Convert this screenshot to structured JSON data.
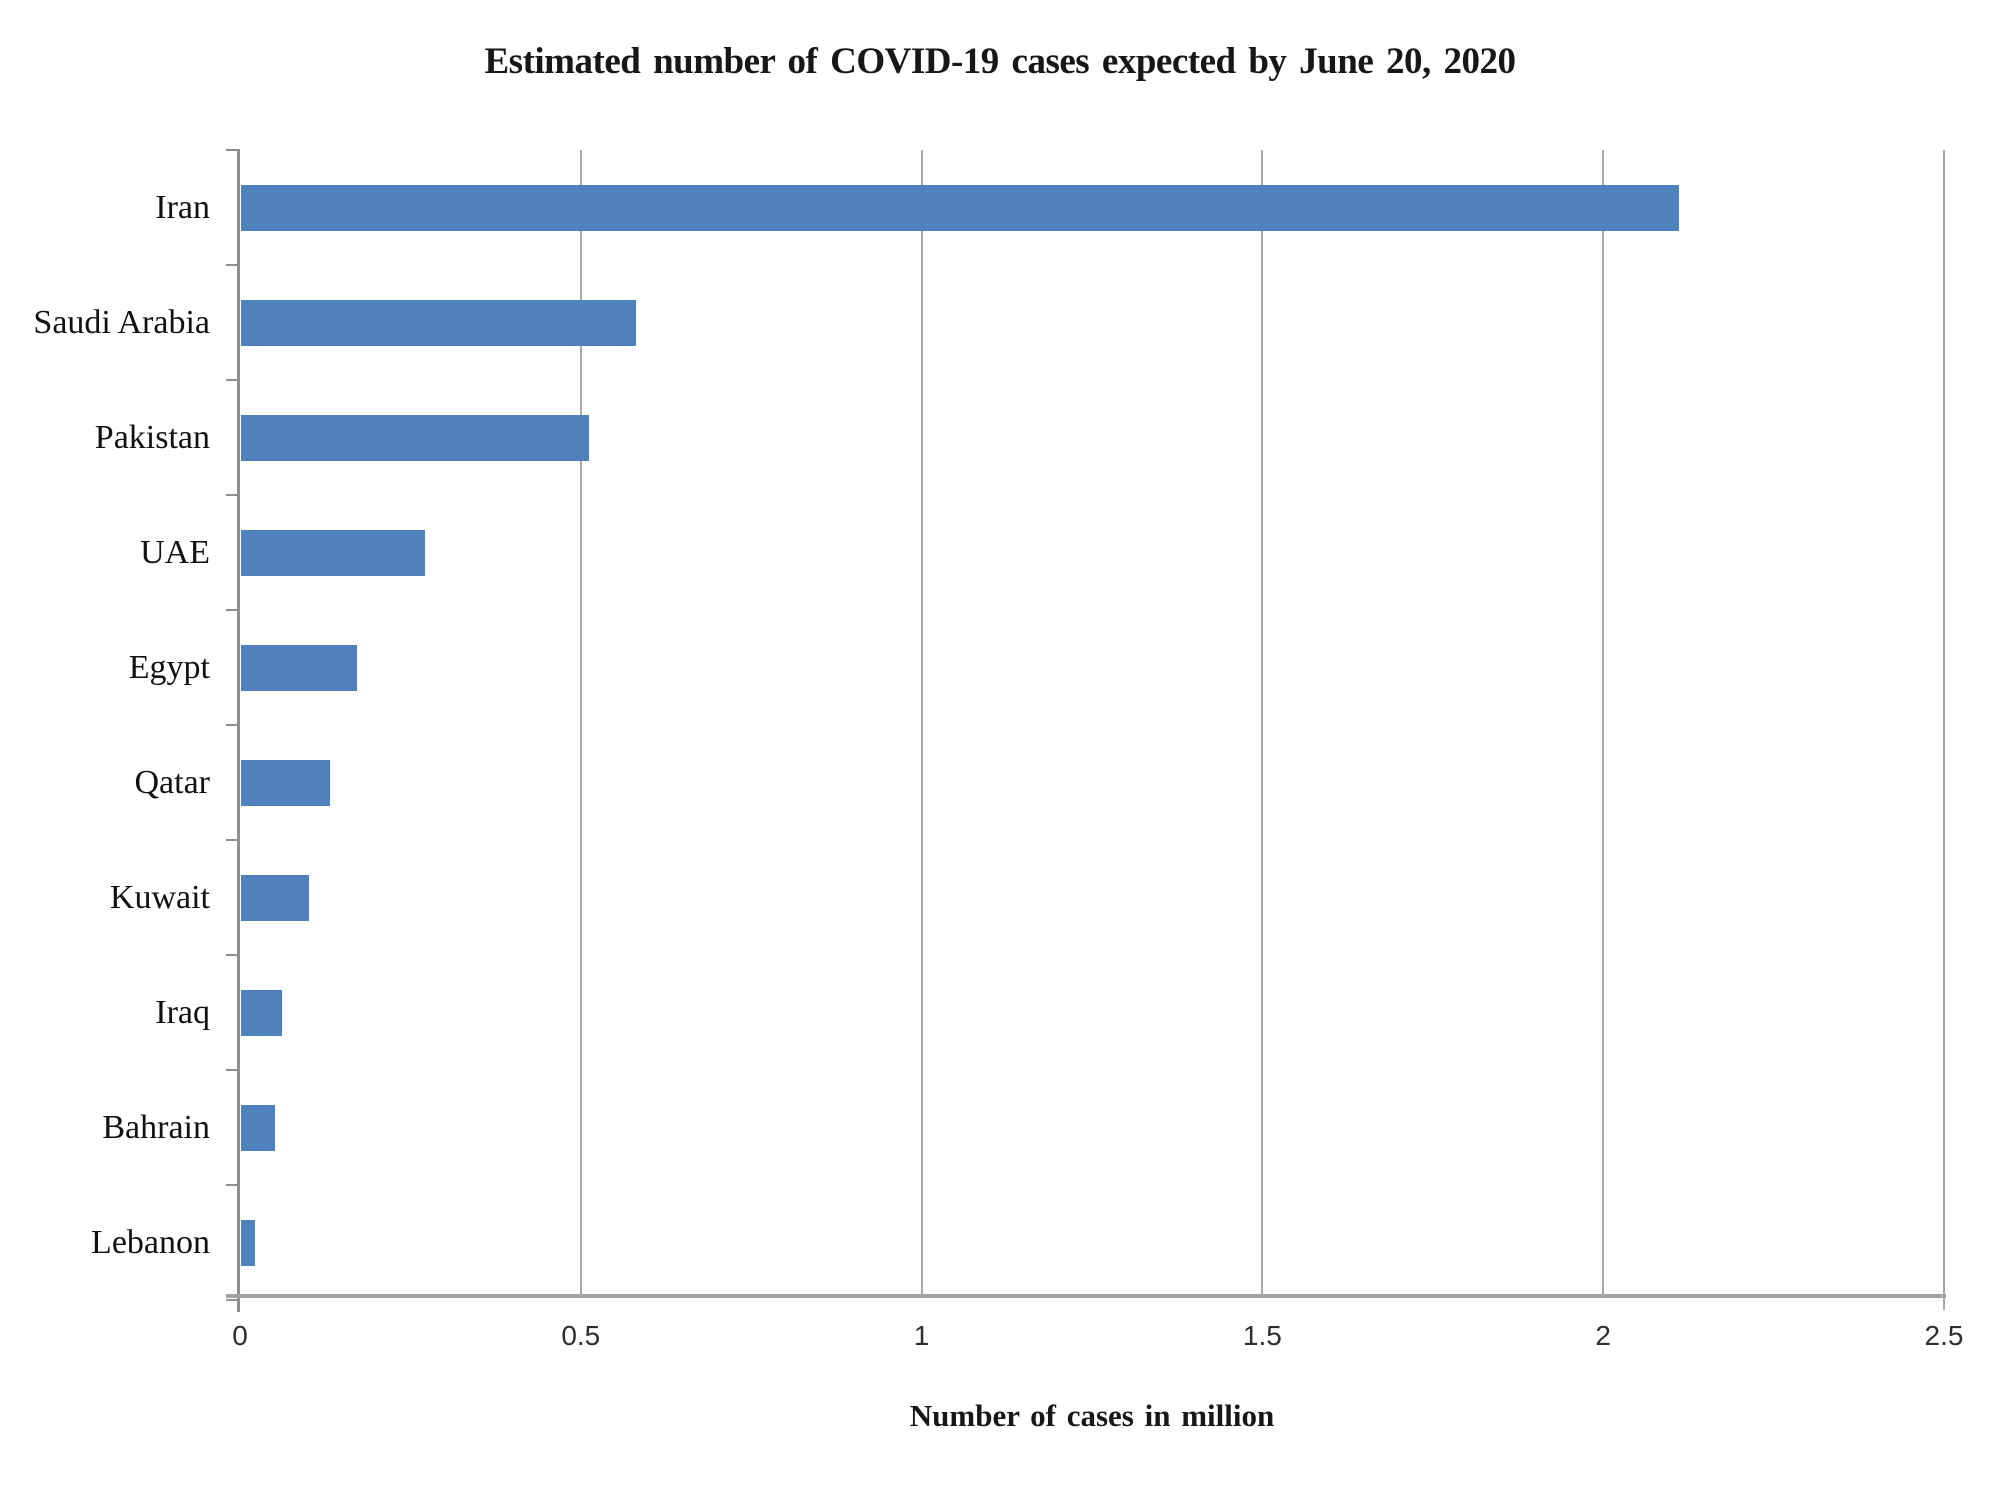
{
  "chart_data": {
    "type": "bar",
    "orientation": "horizontal",
    "title": "Estimated number of COVID-19 cases expected by June 20, 2020",
    "xlabel": "Number of cases in million",
    "ylabel": "",
    "categories": [
      "Iran",
      "Saudi Arabia",
      "Pakistan",
      "UAE",
      "Egypt",
      "Qatar",
      "Kuwait",
      "Iraq",
      "Bahrain",
      "Lebanon"
    ],
    "values": [
      2.11,
      0.58,
      0.51,
      0.27,
      0.17,
      0.13,
      0.1,
      0.06,
      0.05,
      0.02
    ],
    "xlim": [
      0,
      2.5
    ],
    "xticks": [
      0,
      0.5,
      1,
      1.5,
      2,
      2.5
    ],
    "xtick_labels": [
      "0",
      "0.5",
      "1",
      "1.5",
      "2",
      "2.5"
    ],
    "grid": true,
    "legend": false,
    "bar_color": "#4f81bd",
    "axis_color": "#9a9a9a",
    "gridline_color": "#a8a8a8",
    "title_color": "#171717",
    "background_color": "#ffffff"
  }
}
